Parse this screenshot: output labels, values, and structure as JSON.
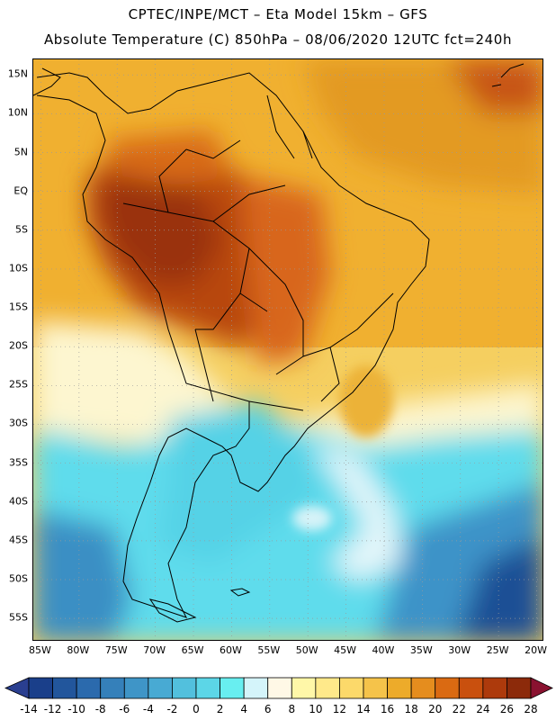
{
  "header": {
    "line1": "CPTEC/INPE/MCT –  Eta Model 15km – GFS",
    "line2": "Absolute Temperature (C) 850hPa – 08/06/2020 12UTC fct=240h"
  },
  "map": {
    "lon_range": [
      -86,
      -19
    ],
    "lat_range": [
      -58,
      17
    ],
    "lat_labels": [
      {
        "value": 15,
        "label": "15N"
      },
      {
        "value": 10,
        "label": "10N"
      },
      {
        "value": 5,
        "label": "5N"
      },
      {
        "value": 0,
        "label": "EQ"
      },
      {
        "value": -5,
        "label": "5S"
      },
      {
        "value": -10,
        "label": "10S"
      },
      {
        "value": -15,
        "label": "15S"
      },
      {
        "value": -20,
        "label": "20S"
      },
      {
        "value": -25,
        "label": "25S"
      },
      {
        "value": -30,
        "label": "30S"
      },
      {
        "value": -35,
        "label": "35S"
      },
      {
        "value": -40,
        "label": "40S"
      },
      {
        "value": -45,
        "label": "45S"
      },
      {
        "value": -50,
        "label": "50S"
      },
      {
        "value": -55,
        "label": "55S"
      }
    ],
    "lon_labels": [
      {
        "value": -85,
        "label": "85W"
      },
      {
        "value": -80,
        "label": "80W"
      },
      {
        "value": -75,
        "label": "75W"
      },
      {
        "value": -70,
        "label": "70W"
      },
      {
        "value": -65,
        "label": "65W"
      },
      {
        "value": -60,
        "label": "60W"
      },
      {
        "value": -55,
        "label": "55W"
      },
      {
        "value": -50,
        "label": "50W"
      },
      {
        "value": -45,
        "label": "45W"
      },
      {
        "value": -40,
        "label": "40W"
      },
      {
        "value": -35,
        "label": "35W"
      },
      {
        "value": -30,
        "label": "30W"
      },
      {
        "value": -25,
        "label": "25W"
      },
      {
        "value": -20,
        "label": "20W"
      }
    ]
  },
  "colorbar": {
    "labels": [
      "-14",
      "-12",
      "-10",
      "-8",
      "-6",
      "-4",
      "-2",
      "0",
      "2",
      "4",
      "6",
      "8",
      "10",
      "12",
      "14",
      "16",
      "18",
      "20",
      "22",
      "24",
      "26",
      "28"
    ],
    "colors": [
      "#1a3f8a",
      "#22569c",
      "#2b6aad",
      "#3580ba",
      "#3f95c7",
      "#48aad3",
      "#52c0dd",
      "#5cd6e7",
      "#68eef0",
      "#d4f4fa",
      "#fff8e6",
      "#fff7a8",
      "#ffe98a",
      "#fcd96a",
      "#f5c34a",
      "#edab2a",
      "#e58d1e",
      "#da6a12",
      "#c9500e",
      "#ad3a0c",
      "#8c2a0a"
    ],
    "low_arrow_color": "#2a3f90",
    "high_arrow_color": "#8a1230"
  }
}
